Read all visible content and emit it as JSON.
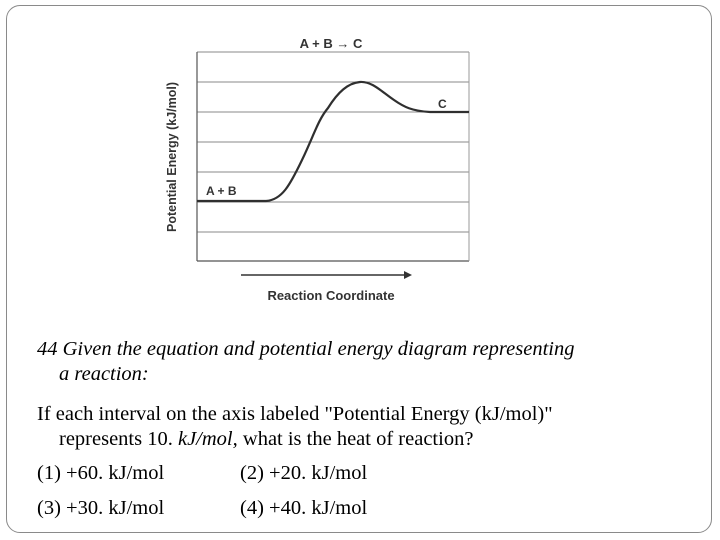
{
  "diagram": {
    "equation": "A + B → C",
    "y_axis_label": "Potential Energy (kJ/mol)",
    "x_axis_label": "Reaction Coordinate",
    "reactants_label": "A + B",
    "products_label": "C",
    "gridlines": 7
  },
  "question": {
    "line1": "44 Given the equation and potential energy diagram representing",
    "line2": "a reaction:",
    "body_line1": "If each interval on the axis labeled \"Potential Energy (kJ/mol)\"",
    "body_line2_pre": "represents 10. ",
    "body_line2_em": "kJ/mol,",
    "body_line2_post": " what is the heat of reaction?",
    "choices": [
      "(1) +60. kJ/mol",
      "(2) +20. kJ/mol",
      "(3) +30. kJ/mol",
      "(4) +40. kJ/mol"
    ]
  }
}
